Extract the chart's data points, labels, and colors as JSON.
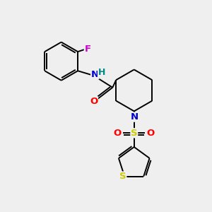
{
  "background_color": "#efefef",
  "atom_colors": {
    "C": "#000000",
    "N": "#0000cc",
    "O": "#ff0000",
    "S_sulfonyl": "#cccc00",
    "S_thiophene": "#cccc00",
    "F": "#cc00cc",
    "H": "#008888"
  },
  "figsize": [
    3.0,
    3.0
  ],
  "dpi": 100,
  "lw": 1.4,
  "fontsize": 9.5
}
